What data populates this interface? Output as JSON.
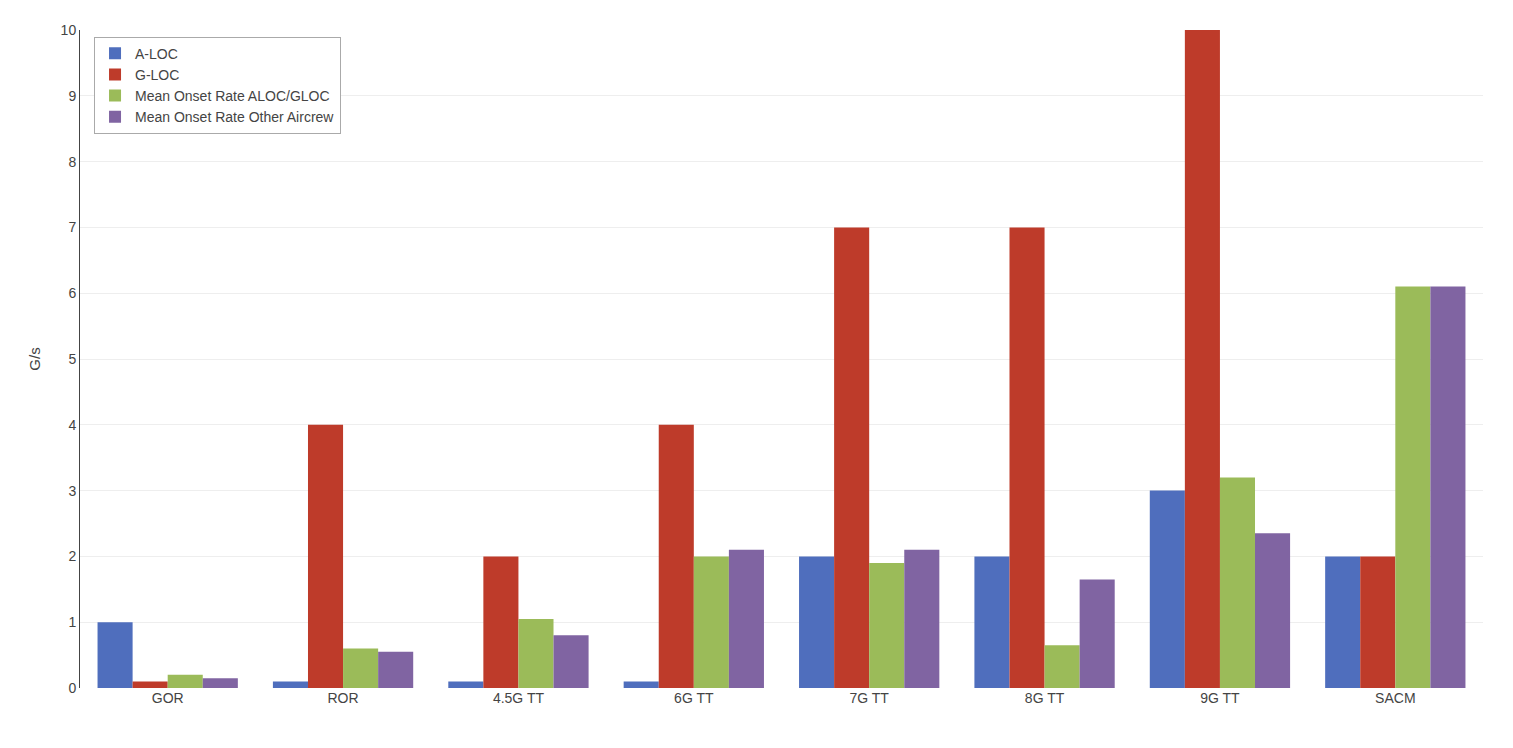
{
  "chart_data": {
    "type": "bar",
    "categories": [
      "GOR",
      "ROR",
      "4.5G TT",
      "6G TT",
      "7G TT",
      "8G TT",
      "9G TT",
      "SACM"
    ],
    "series": [
      {
        "name": "A-LOC",
        "color": "#4F6EBD",
        "values": [
          1.0,
          0.1,
          0.1,
          0.1,
          2.0,
          2.0,
          3.0,
          2.0
        ]
      },
      {
        "name": "G-LOC",
        "color": "#BE3B2A",
        "values": [
          0.1,
          4.0,
          2.0,
          4.0,
          7.0,
          7.0,
          10.0,
          2.0
        ]
      },
      {
        "name": "Mean Onset Rate ALOC/GLOC",
        "color": "#9BBB59",
        "values": [
          0.2,
          0.6,
          1.05,
          2.0,
          1.9,
          0.65,
          3.2,
          6.1
        ]
      },
      {
        "name": "Mean Onset Rate Other Aircrew",
        "color": "#8064A2",
        "values": [
          0.15,
          0.55,
          0.8,
          2.1,
          2.1,
          1.65,
          2.35,
          6.1
        ]
      }
    ],
    "ylabel": "G/s",
    "ylim": [
      0,
      10
    ],
    "yticks": [
      0,
      1,
      2,
      3,
      4,
      5,
      6,
      7,
      8,
      9,
      10
    ],
    "grid": true,
    "legend": "upper left"
  }
}
